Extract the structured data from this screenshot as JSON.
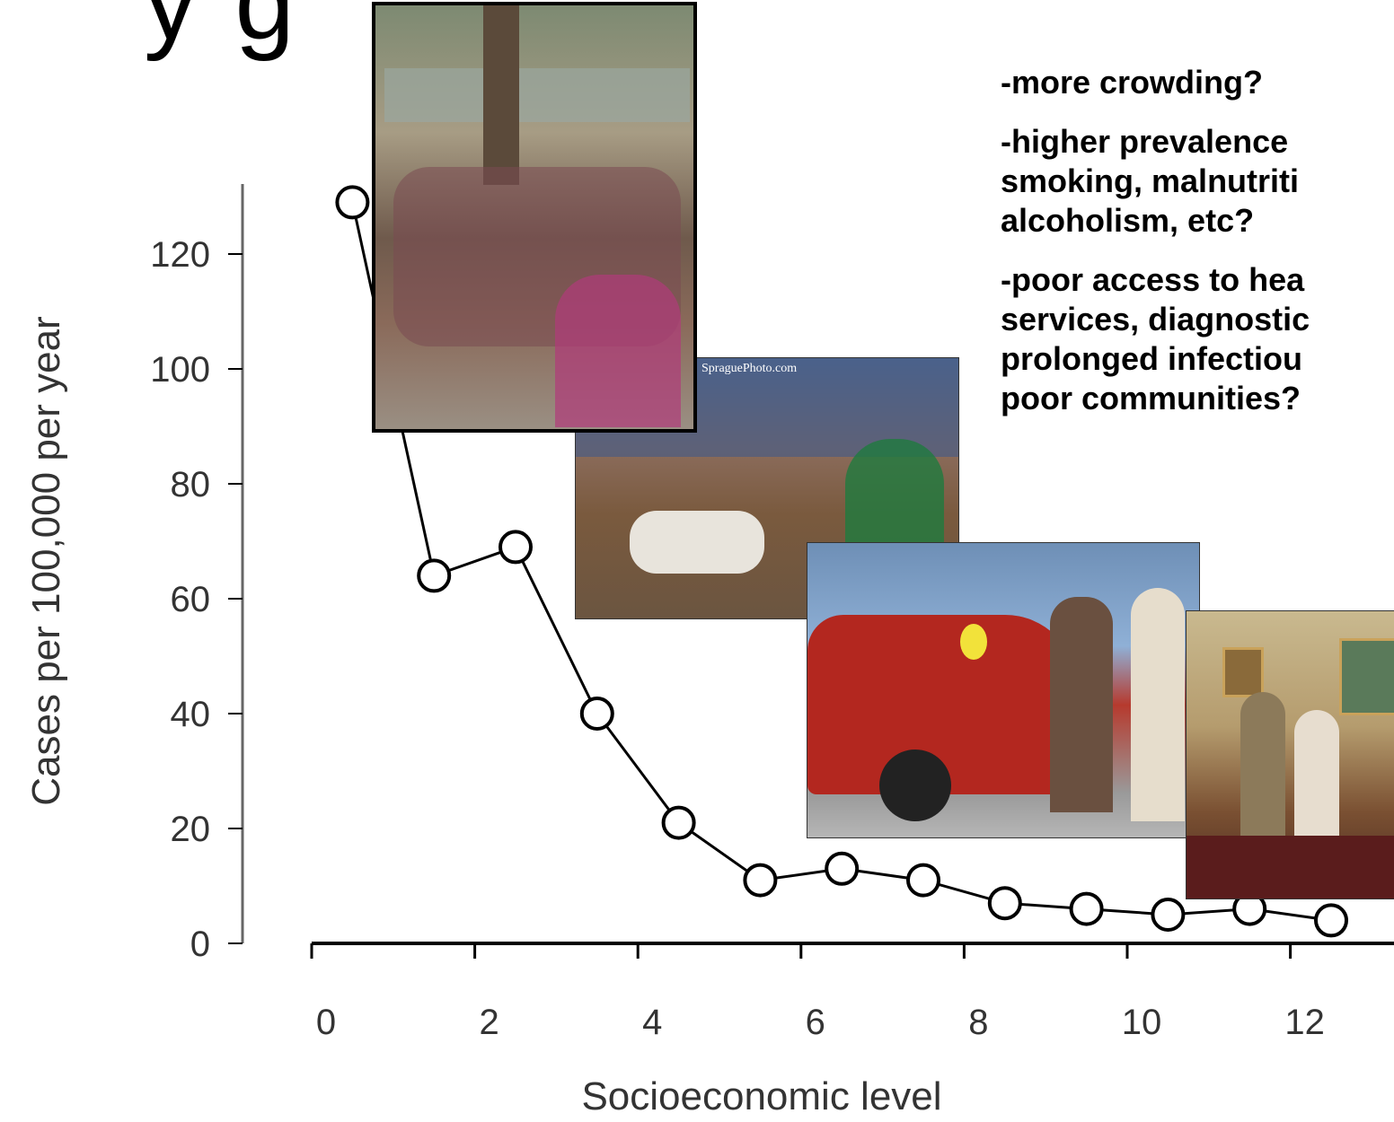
{
  "title_fragment": "y                     g",
  "notes": [
    [
      "-more crowding?"
    ],
    [
      "-higher prevalence",
      "smoking, malnutriti",
      "alcoholism, etc?"
    ],
    [
      "-poor access to hea",
      "services, diagnostic",
      "prolonged infectiou",
      "poor communities?"
    ]
  ],
  "photos": {
    "family_floor_credit": "SpraguePhoto.com"
  },
  "chart_data": {
    "type": "line",
    "xlabel": "Socioeconomic level",
    "ylabel": "Cases per 100,000 per year",
    "xlim": [
      0,
      13.2
    ],
    "ylim": [
      0,
      130
    ],
    "x_ticks": [
      0,
      2,
      4,
      6,
      8,
      10,
      12
    ],
    "y_ticks": [
      0,
      20,
      40,
      60,
      80,
      100,
      120
    ],
    "x": [
      0.5,
      1.5,
      2.5,
      3.5,
      4.5,
      5.5,
      6.5,
      7.5,
      8.5,
      9.5,
      10.5,
      11.5,
      12.5
    ],
    "y": [
      129,
      64,
      69,
      40,
      21,
      11,
      13,
      11,
      7,
      6,
      5,
      6,
      4
    ],
    "marker": "open-circle",
    "grid": false,
    "colors": {
      "line": "#000000",
      "axis": "#000000",
      "marker_fill": "#ffffff"
    }
  }
}
